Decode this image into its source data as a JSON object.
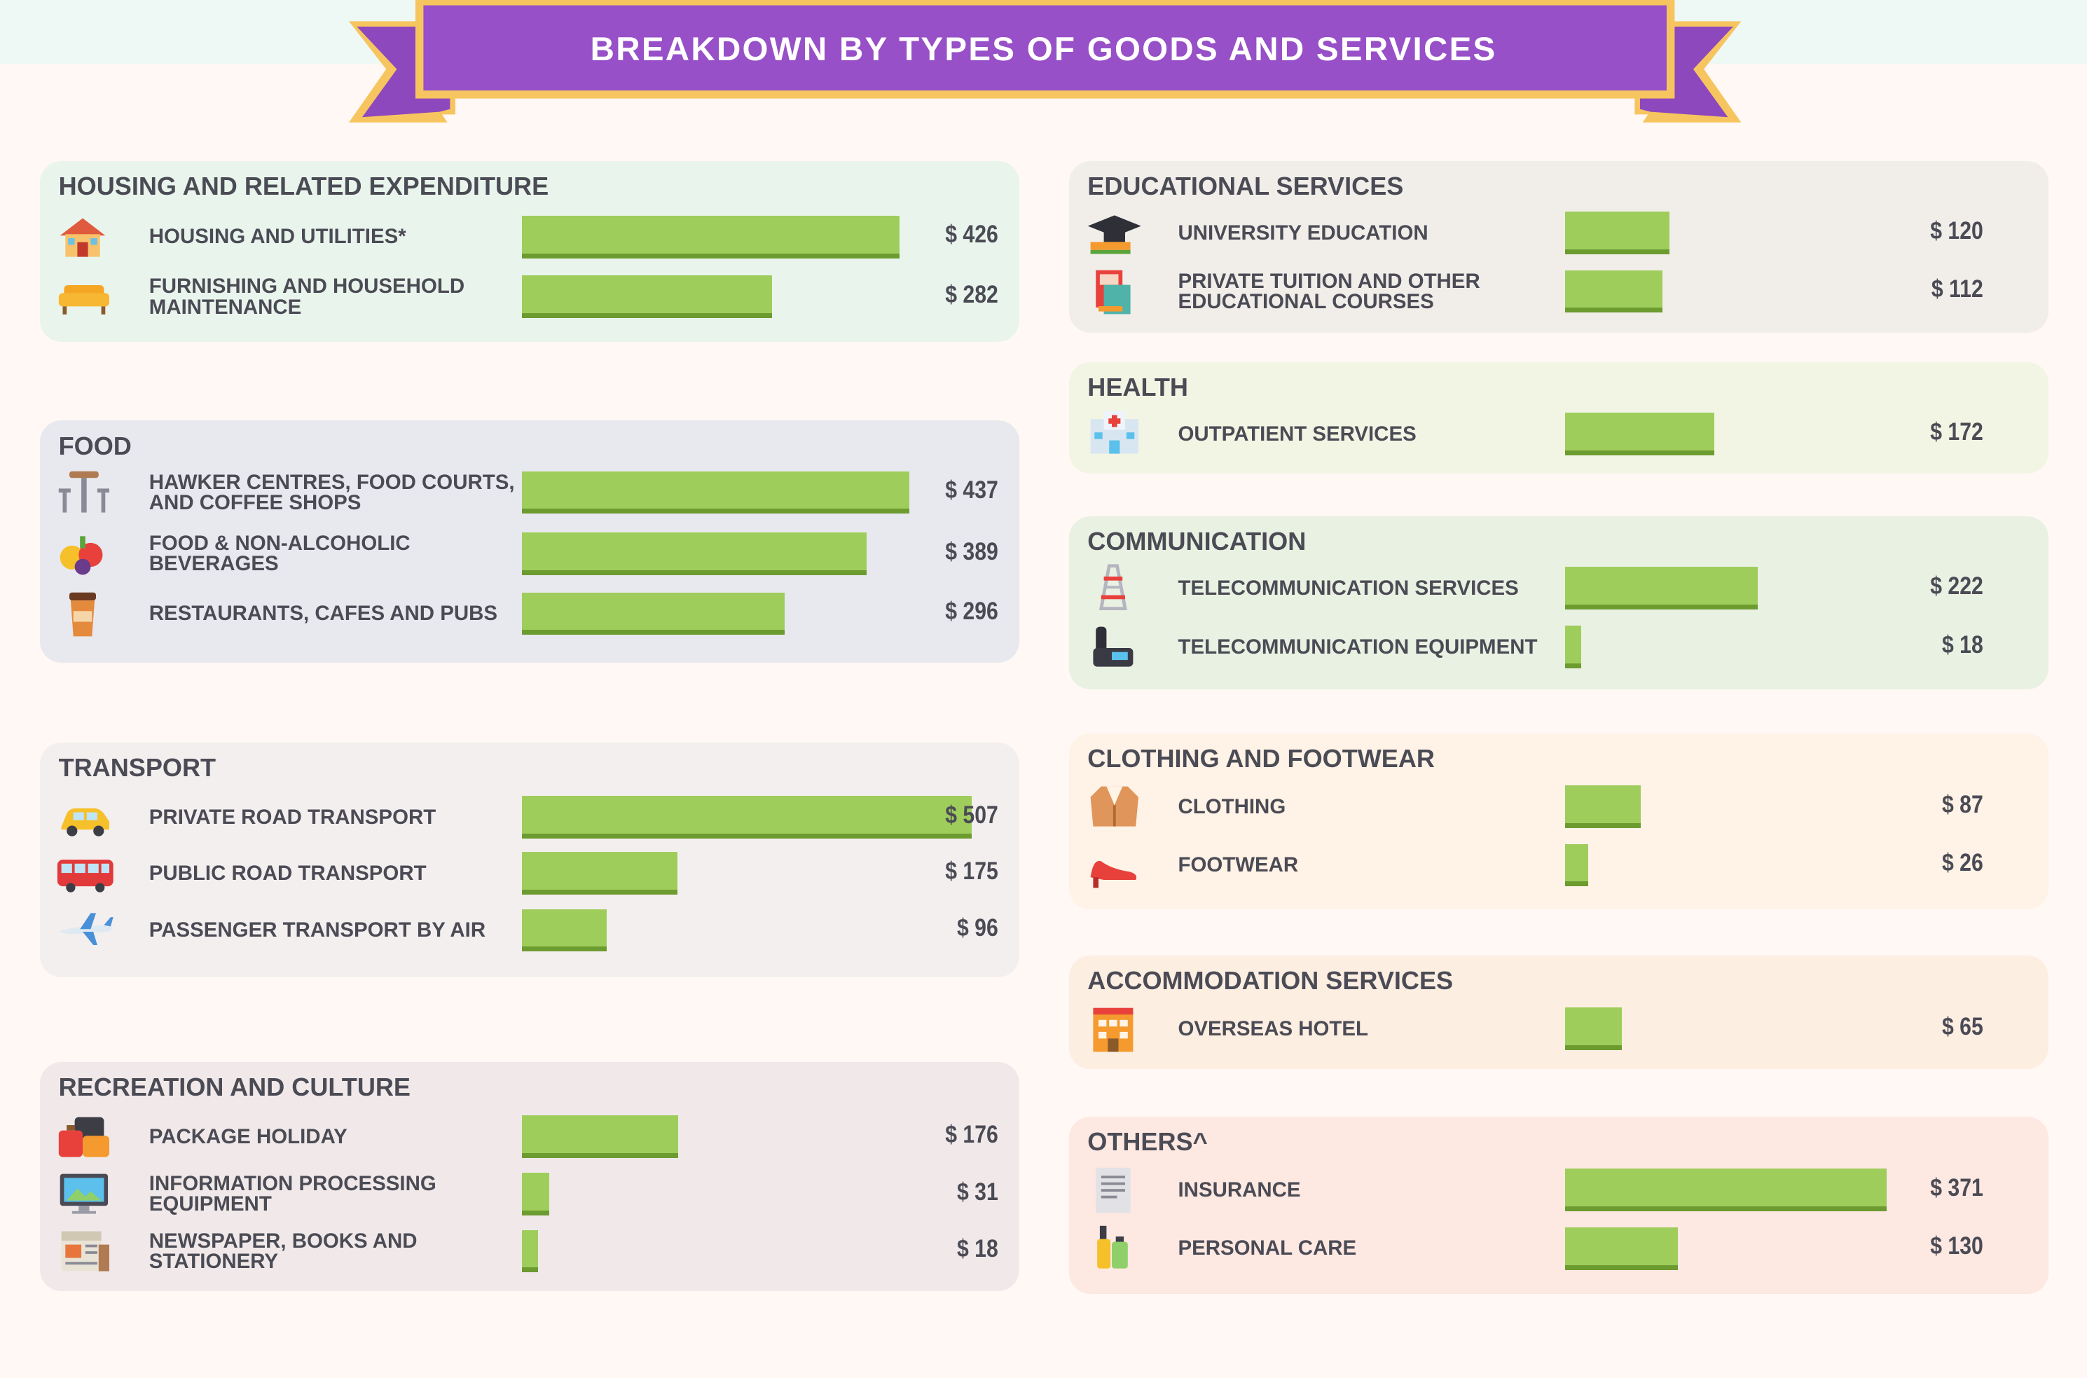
{
  "title": "BREAKDOWN BY TYPES OF GOODS AND SERVICES",
  "colors": {
    "bar": "#9fcd5c",
    "bar_shadow": "#6c9b30",
    "banner": "#9750c7",
    "banner_border": "#f6c55f",
    "panel_housing": "#e9f5ec",
    "panel_food": "#e8e9ee",
    "panel_transport": "#f4efef",
    "panel_recreation": "#f1e9e9",
    "panel_education": "#f1eeea",
    "panel_health": "#f2f5e4",
    "panel_communication": "#e9f1e2",
    "panel_clothing": "#fff2e6",
    "panel_accommodation": "#fdeee2",
    "panel_others": "#fde8e2"
  },
  "chart_data": {
    "type": "bar",
    "orientation": "horizontal",
    "unit": "$",
    "value_axis": {
      "min": 0,
      "max": 540
    },
    "groups": [
      {
        "id": "housing",
        "title": "HOUSING AND RELATED EXPENDITURE",
        "items": [
          {
            "label": "HOUSING AND UTILITIES*",
            "value": 426,
            "value_label": "$ 426",
            "icon": "house-icon"
          },
          {
            "label": "FURNISHING AND HOUSEHOLD\nMAINTENANCE",
            "value": 282,
            "value_label": "$ 282",
            "icon": "sofa-icon"
          }
        ]
      },
      {
        "id": "food",
        "title": "FOOD",
        "items": [
          {
            "label": "HAWKER CENTRES, FOOD COURTS,\nAND COFFEE SHOPS",
            "value": 437,
            "value_label": "$ 437",
            "icon": "table-stools-icon"
          },
          {
            "label": "FOOD & NON-ALCOHOLIC\nBEVERAGES",
            "value": 389,
            "value_label": "$ 389",
            "icon": "fruits-icon"
          },
          {
            "label": "RESTAURANTS, CAFES AND PUBS",
            "value": 296,
            "value_label": "$ 296",
            "icon": "coffee-cup-icon"
          }
        ]
      },
      {
        "id": "transport",
        "title": "TRANSPORT",
        "items": [
          {
            "label": "PRIVATE ROAD TRANSPORT",
            "value": 507,
            "value_label": "$ 507",
            "icon": "car-icon"
          },
          {
            "label": "PUBLIC ROAD TRANSPORT",
            "value": 175,
            "value_label": "$ 175",
            "icon": "bus-icon"
          },
          {
            "label": "PASSENGER TRANSPORT BY AIR",
            "value": 96,
            "value_label": "$ 96",
            "icon": "airplane-icon"
          }
        ]
      },
      {
        "id": "recreation",
        "title": "RECREATION AND CULTURE",
        "items": [
          {
            "label": "PACKAGE HOLIDAY",
            "value": 176,
            "value_label": "$ 176",
            "icon": "luggage-icon"
          },
          {
            "label": "INFORMATION PROCESSING\nEQUIPMENT",
            "value": 31,
            "value_label": "$ 31",
            "icon": "computer-monitor-icon"
          },
          {
            "label": "NEWSPAPER, BOOKS AND\nSTATIONERY",
            "value": 18,
            "value_label": "$ 18",
            "icon": "newspaper-icon"
          }
        ]
      },
      {
        "id": "education",
        "title": "EDUCATIONAL SERVICES",
        "items": [
          {
            "label": "UNIVERSITY EDUCATION",
            "value": 120,
            "value_label": "$ 120",
            "icon": "graduation-cap-icon"
          },
          {
            "label": "PRIVATE TUITION AND OTHER\nEDUCATIONAL COURSES",
            "value": 112,
            "value_label": "$ 112",
            "icon": "books-icon"
          }
        ]
      },
      {
        "id": "health",
        "title": "HEALTH",
        "items": [
          {
            "label": "OUTPATIENT SERVICES",
            "value": 172,
            "value_label": "$ 172",
            "icon": "hospital-icon"
          }
        ]
      },
      {
        "id": "communication",
        "title": "COMMUNICATION",
        "items": [
          {
            "label": "TELECOMMUNICATION SERVICES",
            "value": 222,
            "value_label": "$ 222",
            "icon": "transmission-tower-icon"
          },
          {
            "label": "TELECOMMUNICATION EQUIPMENT",
            "value": 18,
            "value_label": "$ 18",
            "icon": "telephone-icon"
          }
        ]
      },
      {
        "id": "clothing",
        "title": "CLOTHING AND FOOTWEAR",
        "items": [
          {
            "label": "CLOTHING",
            "value": 87,
            "value_label": "$ 87",
            "icon": "jacket-icon"
          },
          {
            "label": "FOOTWEAR",
            "value": 26,
            "value_label": "$ 26",
            "icon": "high-heel-icon"
          }
        ]
      },
      {
        "id": "accommodation",
        "title": "ACCOMMODATION SERVICES",
        "items": [
          {
            "label": "OVERSEAS HOTEL",
            "value": 65,
            "value_label": "$ 65",
            "icon": "hotel-icon"
          }
        ]
      },
      {
        "id": "others",
        "title": "OTHERS^",
        "items": [
          {
            "label": "INSURANCE",
            "value": 371,
            "value_label": "$ 371",
            "icon": "document-icon"
          },
          {
            "label": "PERSONAL CARE",
            "value": 130,
            "value_label": "$ 130",
            "icon": "personal-care-bottles-icon"
          }
        ]
      }
    ]
  }
}
